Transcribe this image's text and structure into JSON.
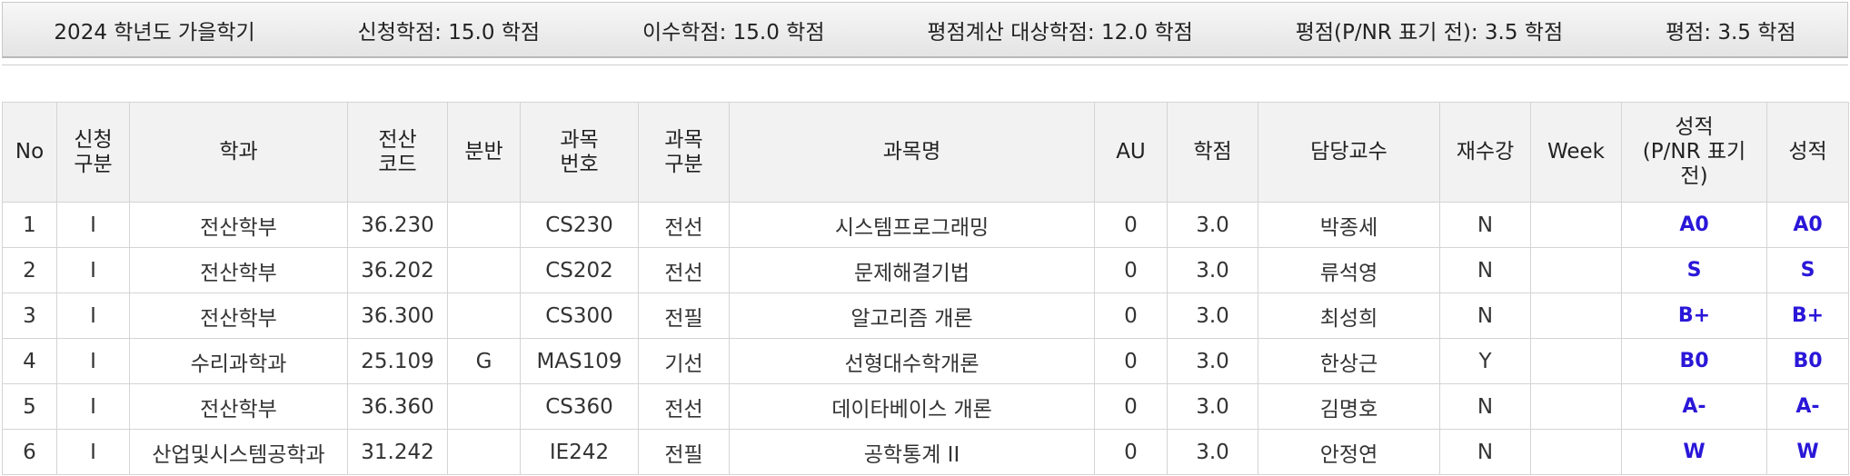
{
  "summary": {
    "semester": "2024 학년도 가을학기",
    "applied_credits": "신청학점: 15.0 학점",
    "earned_credits": "이수학점: 15.0 학점",
    "gpa_credits": "평점계산 대상학점: 12.0 학점",
    "gpa_before_pnr": "평점(P/NR 표기 전): 3.5 학점",
    "gpa": "평점: 3.5 학점"
  },
  "table": {
    "headers": {
      "no": "No",
      "type": "신청\n구분",
      "dept": "학과",
      "code": "전산\n코드",
      "section": "분반",
      "course_no": "과목\n번호",
      "course_type": "과목\n구분",
      "course_name": "과목명",
      "au": "AU",
      "credit": "학점",
      "professor": "담당교수",
      "retake": "재수강",
      "week": "Week",
      "grade_pnr": "성적\n(P/NR 표기\n전)",
      "grade": "성적"
    },
    "rows": [
      {
        "no": "1",
        "type": "I",
        "dept": "전산학부",
        "code": "36.230",
        "section": "",
        "course_no": "CS230",
        "course_type": "전선",
        "course_name": "시스템프로그래밍",
        "au": "0",
        "credit": "3.0",
        "professor": "박종세",
        "retake": "N",
        "week": "",
        "grade_pnr": "A0",
        "grade": "A0"
      },
      {
        "no": "2",
        "type": "I",
        "dept": "전산학부",
        "code": "36.202",
        "section": "",
        "course_no": "CS202",
        "course_type": "전선",
        "course_name": "문제해결기법",
        "au": "0",
        "credit": "3.0",
        "professor": "류석영",
        "retake": "N",
        "week": "",
        "grade_pnr": "S",
        "grade": "S"
      },
      {
        "no": "3",
        "type": "I",
        "dept": "전산학부",
        "code": "36.300",
        "section": "",
        "course_no": "CS300",
        "course_type": "전필",
        "course_name": "알고리즘 개론",
        "au": "0",
        "credit": "3.0",
        "professor": "최성희",
        "retake": "N",
        "week": "",
        "grade_pnr": "B+",
        "grade": "B+"
      },
      {
        "no": "4",
        "type": "I",
        "dept": "수리과학과",
        "code": "25.109",
        "section": "G",
        "course_no": "MAS109",
        "course_type": "기선",
        "course_name": "선형대수학개론",
        "au": "0",
        "credit": "3.0",
        "professor": "한상근",
        "retake": "Y",
        "week": "",
        "grade_pnr": "B0",
        "grade": "B0"
      },
      {
        "no": "5",
        "type": "I",
        "dept": "전산학부",
        "code": "36.360",
        "section": "",
        "course_no": "CS360",
        "course_type": "전선",
        "course_name": "데이타베이스 개론",
        "au": "0",
        "credit": "3.0",
        "professor": "김명호",
        "retake": "N",
        "week": "",
        "grade_pnr": "A-",
        "grade": "A-"
      },
      {
        "no": "6",
        "type": "I",
        "dept": "산업및시스템공학과",
        "code": "31.242",
        "section": "",
        "course_no": "IE242",
        "course_type": "전필",
        "course_name": "공학통계 II",
        "au": "0",
        "credit": "3.0",
        "professor": "안정연",
        "retake": "N",
        "week": "",
        "grade_pnr": "W",
        "grade": "W"
      }
    ]
  },
  "colors": {
    "grade_text": "#2a17d8",
    "header_bg": "#f2f2f2",
    "border": "#d4d4d4"
  }
}
